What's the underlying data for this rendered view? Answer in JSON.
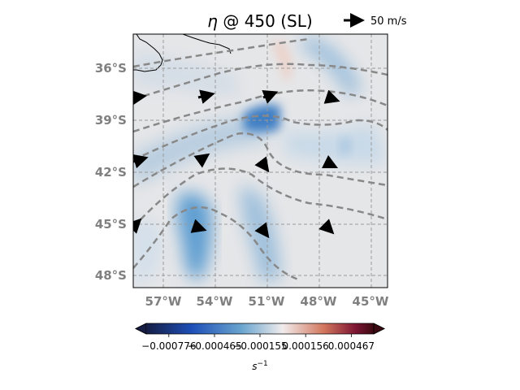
{
  "title": {
    "symbol": "η",
    "rest": " @ 450 (SL)"
  },
  "quiver_key": {
    "label": "50 m/s"
  },
  "map": {
    "lon_ticks": [
      "57°W",
      "54°W",
      "51°W",
      "48°W",
      "45°W"
    ],
    "lat_ticks": [
      "36°S",
      "39°S",
      "42°S",
      "45°S",
      "48°S"
    ],
    "gridlines": "dashed",
    "coastline": true,
    "extent": {
      "lon": [
        -58.7,
        -44.3
      ],
      "lat": [
        -48.8,
        -34.2
      ]
    }
  },
  "colorbar": {
    "tick_labels": [
      "−0.000776",
      "−0.000465",
      "−0.000155",
      "0.000156",
      "0.000467"
    ],
    "tick_values": [
      -0.000776,
      -0.000465,
      -0.000155,
      0.000156,
      0.000467
    ],
    "range": [
      -0.00093,
      0.00062
    ],
    "unit_label": "s",
    "unit_sup": "−1",
    "extend": "both",
    "colormap": "balance",
    "colors": [
      "#151d44",
      "#1d4fb7",
      "#6aa5cf",
      "#f1ecec",
      "#d2775e",
      "#7c1533",
      "#3c0912"
    ]
  }
}
